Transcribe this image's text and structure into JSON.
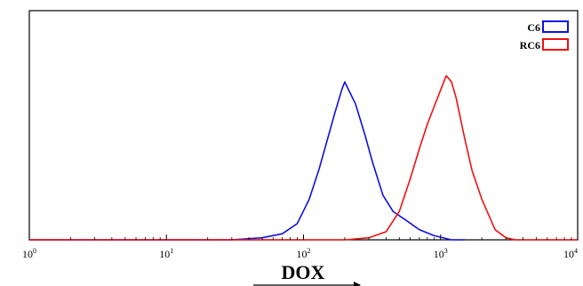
{
  "chart_data": {
    "type": "line",
    "title": "",
    "xlabel": "DOX",
    "ylabel": "",
    "x_scale": "log",
    "xlim": [
      1,
      10000
    ],
    "ylim": [
      0,
      100
    ],
    "x_ticks": [
      {
        "base": "10",
        "exp": "0"
      },
      {
        "base": "10",
        "exp": "1"
      },
      {
        "base": "10",
        "exp": "2"
      },
      {
        "base": "10",
        "exp": "3"
      },
      {
        "base": "10",
        "exp": "4"
      }
    ],
    "grid": false,
    "legend_position": "top-right",
    "series": [
      {
        "name": "C6",
        "color": "#1010e0",
        "x": [
          1,
          30,
          50,
          70,
          90,
          110,
          130,
          150,
          170,
          190,
          200,
          210,
          240,
          280,
          320,
          380,
          450,
          550,
          700,
          900,
          1200,
          1500
        ],
        "y": [
          0,
          0,
          1,
          3,
          8,
          20,
          35,
          50,
          63,
          74,
          78,
          75,
          67,
          52,
          38,
          22,
          14,
          10,
          5,
          2,
          0,
          0
        ]
      },
      {
        "name": "RC6",
        "color": "#ee1111",
        "x": [
          1,
          200,
          300,
          400,
          500,
          600,
          700,
          800,
          900,
          1000,
          1100,
          1200,
          1300,
          1500,
          1700,
          2000,
          2500,
          3000,
          3500,
          10000
        ],
        "y": [
          0,
          0,
          1,
          4,
          14,
          30,
          45,
          57,
          66,
          74,
          81,
          78,
          70,
          50,
          34,
          20,
          5,
          1,
          0,
          0
        ]
      }
    ]
  }
}
